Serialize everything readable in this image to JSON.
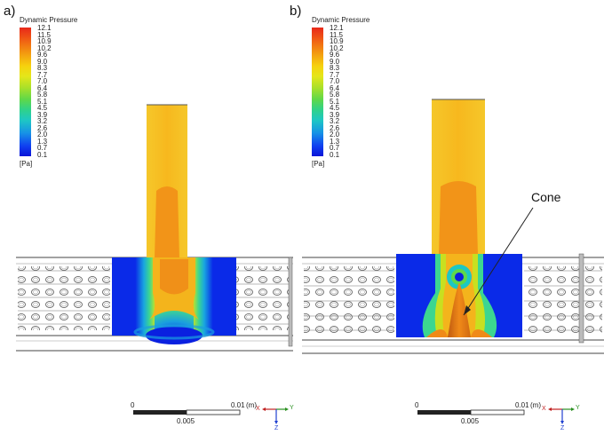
{
  "panels": [
    {
      "label": "a)",
      "legend_title": "Dynamic Pressure",
      "unit": "[Pa]"
    },
    {
      "label": "b)",
      "legend_title": "Dynamic Pressure",
      "unit": "[Pa]"
    }
  ],
  "legend_ticks": [
    "12.1",
    "11.5",
    "10.9",
    "10.2",
    "9.6",
    "9.0",
    "8.3",
    "7.7",
    "7.0",
    "6.4",
    "5.8",
    "5.1",
    "4.5",
    "3.9",
    "3.2",
    "2.6",
    "2.0",
    "1.3",
    "0.7",
    "0.1"
  ],
  "annotation": {
    "cone_label": "Cone"
  },
  "scale_bar": {
    "left": "0",
    "right": "0.01",
    "unit": "(m)",
    "mid": "0.005"
  },
  "axes": {
    "x": "X",
    "y": "Y",
    "z": "Z"
  },
  "colors": {
    "max": "#e8281a",
    "mid": "#e4e61a",
    "min": "#0a14d8",
    "duct": "#f8c820"
  }
}
